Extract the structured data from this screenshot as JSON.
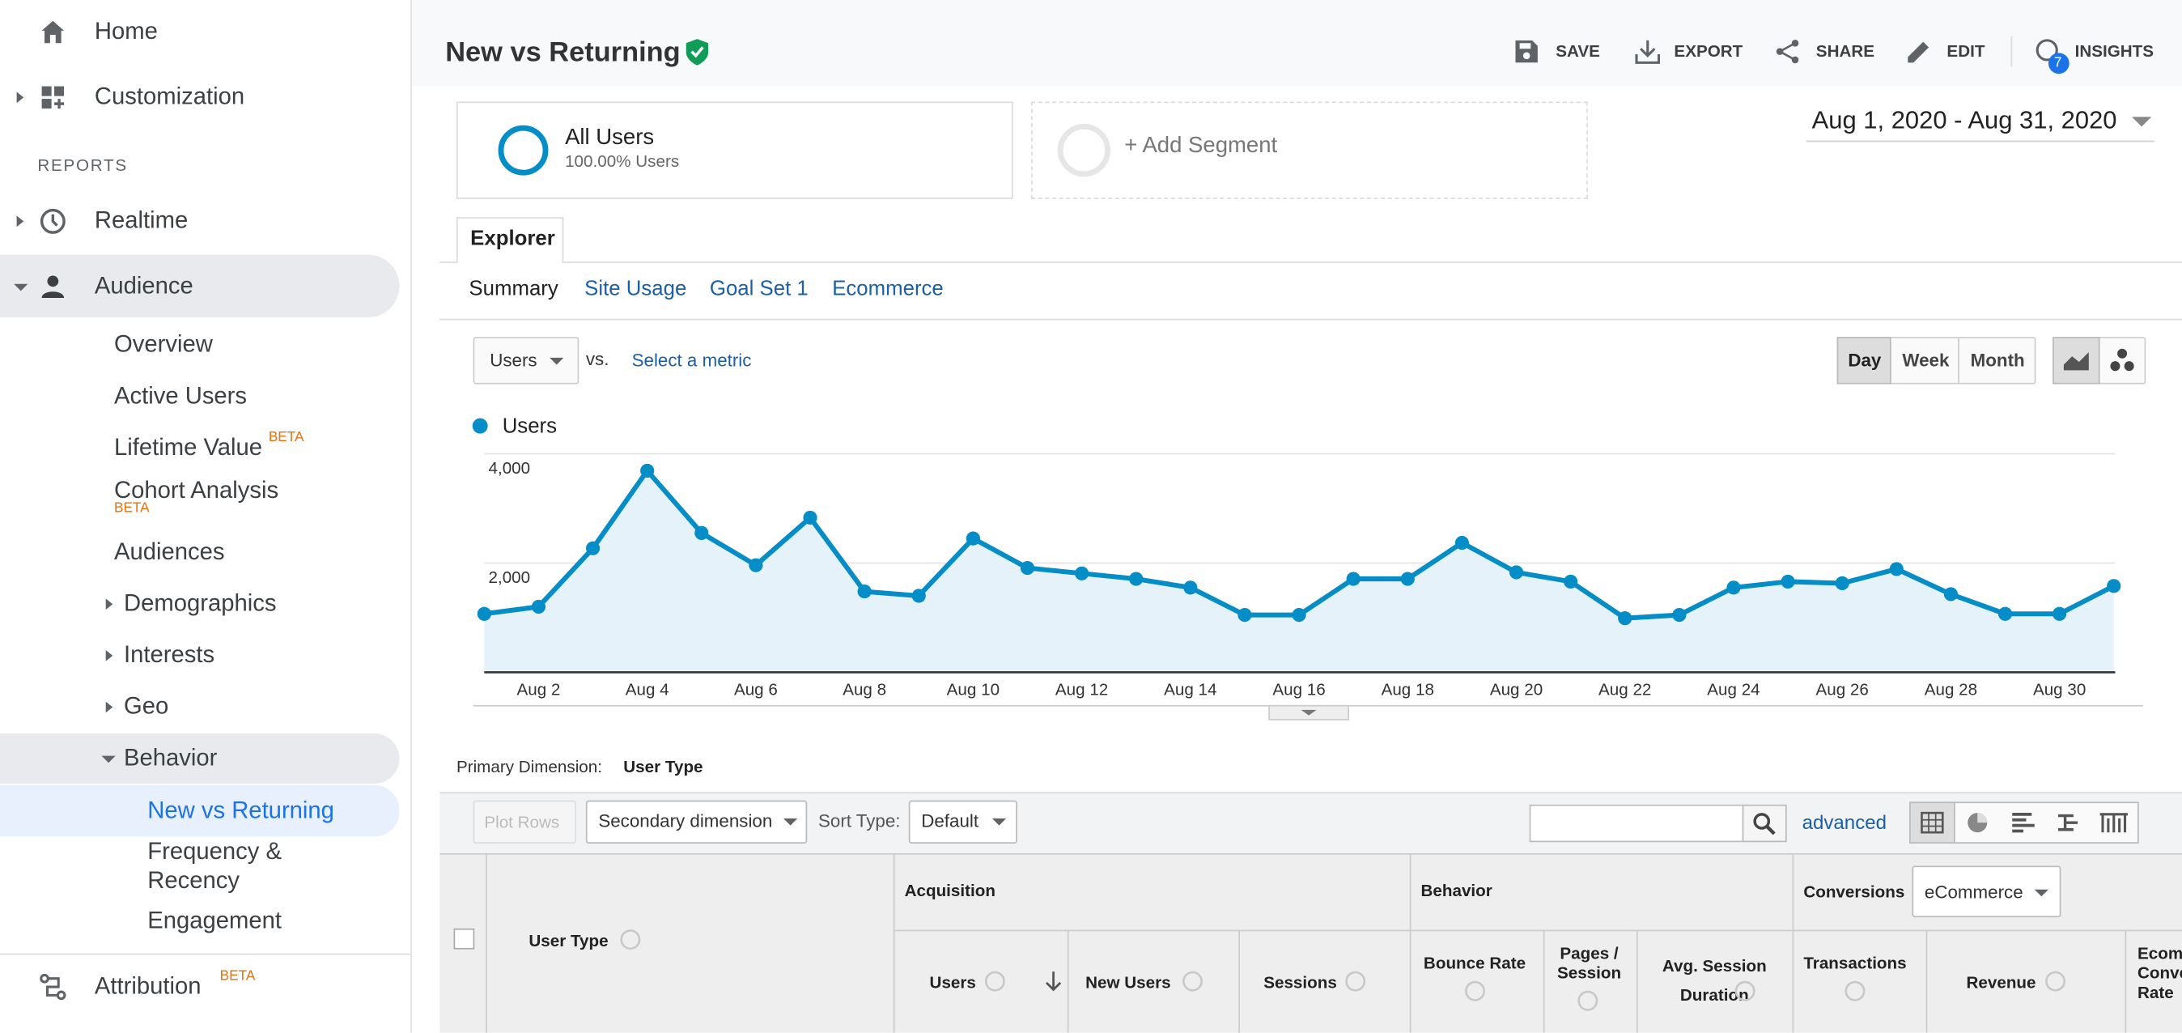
{
  "sidebar": {
    "home": "Home",
    "customization": "Customization",
    "section": "REPORTS",
    "realtime": "Realtime",
    "audience": "Audience",
    "audience_items": [
      "Overview",
      "Active Users",
      "Lifetime Value",
      "Cohort Analysis",
      "Audiences",
      "Demographics",
      "Interests",
      "Geo",
      "Behavior"
    ],
    "behavior_items": [
      "New vs Returning",
      "Frequency & Recency",
      "Engagement"
    ],
    "attribution": "Attribution",
    "badge": "BETA"
  },
  "header": {
    "title": "New vs Returning",
    "actions": [
      "SAVE",
      "EXPORT",
      "SHARE",
      "EDIT",
      "INSIGHTS"
    ],
    "insights_count": 7
  },
  "segments": {
    "all_users": {
      "name": "All Users",
      "detail": "100.00% Users"
    },
    "add": "+ Add Segment"
  },
  "date_range": "Aug 1, 2020 - Aug 31, 2020",
  "tabs": {
    "active": "Explorer",
    "subtabs": [
      "Summary",
      "Site Usage",
      "Goal Set 1",
      "Ecommerce"
    ]
  },
  "controls": {
    "metric": "Users",
    "vs": "vs.",
    "select_metric": "Select a metric",
    "periods": [
      "Day",
      "Week",
      "Month"
    ]
  },
  "chart_data": {
    "type": "line",
    "categories": [
      null,
      "Aug 2",
      null,
      "Aug 4",
      null,
      "Aug 6",
      null,
      "Aug 8",
      null,
      "Aug 10",
      null,
      "Aug 12",
      null,
      "Aug 14",
      null,
      "Aug 16",
      null,
      "Aug 18",
      null,
      "Aug 20",
      null,
      "Aug 22",
      null,
      "Aug 24",
      null,
      "Aug 26",
      null,
      "Aug 28",
      null,
      "Aug 30",
      null
    ],
    "series": [
      {
        "name": "Users",
        "color": "#058dc7",
        "values": [
          1070,
          1200,
          2270,
          3690,
          2550,
          1960,
          2830,
          1480,
          1400,
          2450,
          1910,
          1810,
          1710,
          1550,
          1050,
          1050,
          1710,
          1710,
          2370,
          1830,
          1660,
          990,
          1050,
          1550,
          1660,
          1630,
          1890,
          1430,
          1070,
          1070,
          1580
        ]
      }
    ],
    "ylim": [
      0,
      4000
    ],
    "yticks": [
      {
        "value": 2000,
        "label": "2,000"
      },
      {
        "value": 4000,
        "label": "4,000"
      }
    ],
    "grid": true,
    "area": true
  },
  "table": {
    "primary_label": "Primary Dimension:",
    "primary_value": "User Type",
    "plot_rows": "Plot Rows",
    "secondary": "Secondary dimension",
    "sort_label": "Sort Type:",
    "sort_value": "Default",
    "advanced": "advanced",
    "groups": [
      "Acquisition",
      "Behavior",
      "Conversions"
    ],
    "conversions_select": "eCommerce",
    "dimension_header": "User Type",
    "columns": [
      "Users",
      "New Users",
      "Sessions",
      "Bounce Rate",
      "Pages / Session",
      "Avg. Session Duration",
      "Transactions",
      "Revenue",
      "Ecommerce Conversion Rate"
    ]
  }
}
